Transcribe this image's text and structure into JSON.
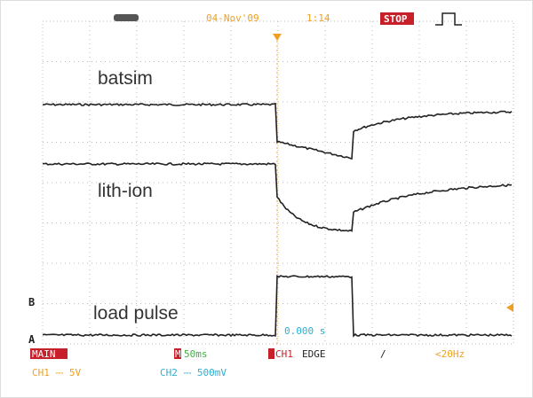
{
  "header": {
    "date": "04-Nov'09",
    "time": "1:14",
    "status": "STOP"
  },
  "traces": [
    {
      "label": "batsim"
    },
    {
      "label": "lith-ion"
    },
    {
      "label": "load pulse"
    }
  ],
  "markers": {
    "ch_b": "B",
    "ch_a": "A"
  },
  "readout": "0.000 s",
  "footer": {
    "mode": "MAIN",
    "timebase_icon": "M",
    "timebase": "50ms",
    "trigger_source": "CH1",
    "trigger_type": "EDGE",
    "slope": "/",
    "freq": "<20Hz",
    "ch1": "CH1 ⎓ 5V",
    "ch2": "CH2 ⎓ 500mV"
  }
}
